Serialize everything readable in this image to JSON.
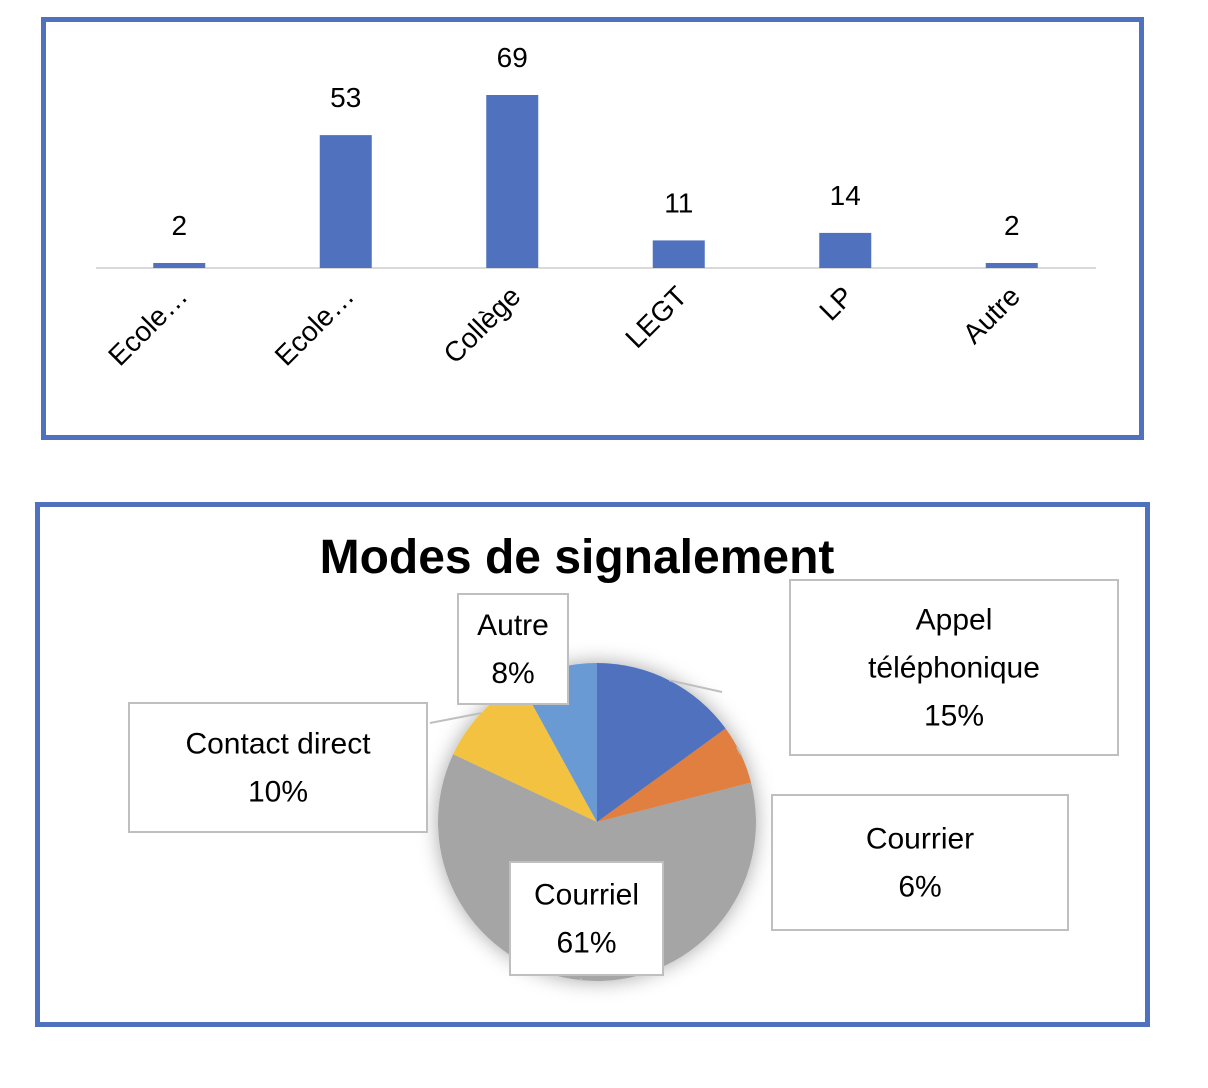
{
  "chart_data": [
    {
      "type": "bar",
      "title": "",
      "xlabel": "",
      "ylabel": "",
      "categories": [
        "Ecole…",
        "Ecole…",
        "Collège",
        "LEGT",
        "LP",
        "Autre"
      ],
      "values": [
        2,
        53,
        69,
        11,
        14,
        2
      ],
      "ylim": [
        0,
        69
      ],
      "color": "#4f71be",
      "data_labels": true,
      "grid": false,
      "legend": "none"
    },
    {
      "type": "pie",
      "title": "Modes de signalement",
      "slices": [
        {
          "label": "Appel téléphonique",
          "label_lines": [
            "Appel",
            "téléphonique"
          ],
          "value": 15,
          "pct": "15%",
          "color": "#4f71be"
        },
        {
          "label": "Courrier",
          "label_lines": [
            "Courrier"
          ],
          "value": 6,
          "pct": "6%",
          "color": "#e07f3f"
        },
        {
          "label": "Courriel",
          "label_lines": [
            "Courriel"
          ],
          "value": 61,
          "pct": "61%",
          "color": "#a5a5a5"
        },
        {
          "label": "Contact direct",
          "label_lines": [
            "Contact direct"
          ],
          "value": 10,
          "pct": "10%",
          "color": "#f3c240"
        },
        {
          "label": "Autre",
          "label_lines": [
            "Autre"
          ],
          "value": 8,
          "pct": "8%",
          "color": "#6a9ad3"
        }
      ],
      "legend": "none"
    }
  ]
}
